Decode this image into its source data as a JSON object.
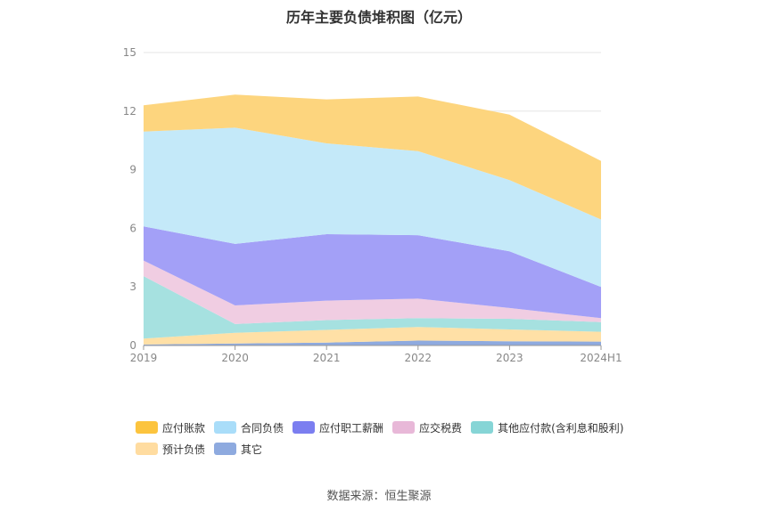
{
  "title": "历年主要负债堆积图（亿元）",
  "source": "数据来源：恒生聚源",
  "chart_data": {
    "type": "area",
    "stacked": true,
    "title": "历年主要负债堆积图（亿元）",
    "categories": [
      "2019",
      "2020",
      "2021",
      "2022",
      "2023",
      "2024H1"
    ],
    "ylim": [
      0,
      15
    ],
    "yticks": [
      0,
      3,
      6,
      9,
      12,
      15
    ],
    "grid": true,
    "legend_position": "bottom",
    "series": [
      {
        "name": "其它",
        "color": "#8eaadf",
        "values": [
          0.05,
          0.1,
          0.15,
          0.25,
          0.22,
          0.2
        ]
      },
      {
        "name": "预计负债",
        "color": "#ffe0a6",
        "values": [
          0.3,
          0.55,
          0.65,
          0.7,
          0.6,
          0.5
        ]
      },
      {
        "name": "其他应付款(含利息和股利)",
        "color": "#a6e1e0",
        "values": [
          3.2,
          0.45,
          0.5,
          0.45,
          0.55,
          0.5
        ]
      },
      {
        "name": "应交税费",
        "color": "#f0cde2",
        "values": [
          0.8,
          0.95,
          1.0,
          1.0,
          0.55,
          0.2
        ]
      },
      {
        "name": "应付职工薪酬",
        "color": "#a3a0f7",
        "values": [
          1.75,
          3.15,
          3.4,
          3.25,
          2.9,
          1.6
        ]
      },
      {
        "name": "合同负债",
        "color": "#c4e9f9",
        "values": [
          4.85,
          5.95,
          4.65,
          4.3,
          3.65,
          3.45
        ]
      },
      {
        "name": "应付账款",
        "color": "#fdd57e",
        "values": [
          1.35,
          1.7,
          2.25,
          2.8,
          3.35,
          3.0
        ]
      }
    ]
  },
  "legend": [
    {
      "label": "应付账款",
      "color": "#fcc43e"
    },
    {
      "label": "合同负债",
      "color": "#a9ddf9"
    },
    {
      "label": "应付职工薪酬",
      "color": "#7b7ef0"
    },
    {
      "label": "应交税费",
      "color": "#e8b8d8"
    },
    {
      "label": "其他应付款(含利息和股利)",
      "color": "#86d5d6"
    },
    {
      "label": "预计负债",
      "color": "#ffdca0"
    },
    {
      "label": "其它",
      "color": "#8eaadf"
    }
  ]
}
